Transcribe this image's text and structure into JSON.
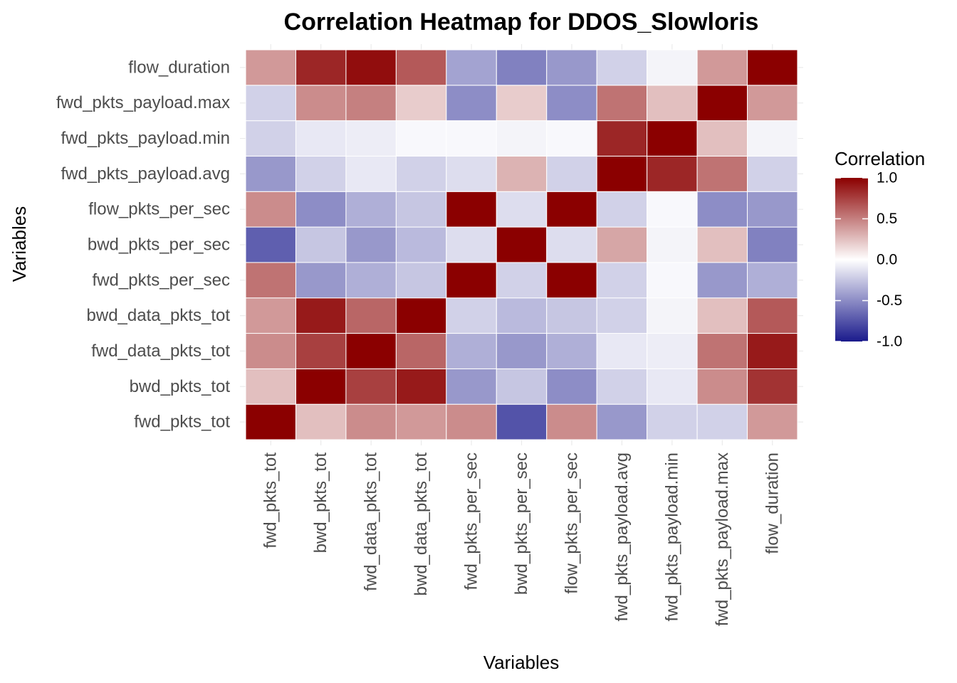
{
  "chart_data": {
    "type": "heatmap",
    "title": "Correlation Heatmap for DDOS_Slowloris",
    "xlabel": "Variables",
    "ylabel": "Variables",
    "x_categories": [
      "fwd_pkts_tot",
      "bwd_pkts_tot",
      "fwd_data_pkts_tot",
      "bwd_data_pkts_tot",
      "fwd_pkts_per_sec",
      "bwd_pkts_per_sec",
      "flow_pkts_per_sec",
      "fwd_pkts_payload.avg",
      "fwd_pkts_payload.min",
      "fwd_pkts_payload.max",
      "flow_duration"
    ],
    "y_categories": [
      "fwd_pkts_tot",
      "bwd_pkts_tot",
      "fwd_data_pkts_tot",
      "bwd_data_pkts_tot",
      "fwd_pkts_per_sec",
      "bwd_pkts_per_sec",
      "flow_pkts_per_sec",
      "fwd_pkts_payload.avg",
      "fwd_pkts_payload.min",
      "fwd_pkts_payload.max",
      "flow_duration"
    ],
    "values": [
      [
        1.0,
        0.25,
        0.45,
        0.4,
        0.45,
        -0.75,
        0.45,
        -0.45,
        -0.2,
        -0.2,
        0.4
      ],
      [
        0.25,
        1.0,
        0.75,
        0.9,
        -0.45,
        -0.25,
        -0.5,
        -0.2,
        -0.1,
        0.45,
        0.8
      ],
      [
        0.45,
        0.75,
        1.0,
        0.6,
        -0.35,
        -0.45,
        -0.35,
        -0.1,
        -0.08,
        0.55,
        0.9
      ],
      [
        0.4,
        0.9,
        0.6,
        1.0,
        -0.2,
        -0.3,
        -0.25,
        -0.2,
        -0.05,
        0.25,
        0.65
      ],
      [
        0.55,
        -0.45,
        -0.35,
        -0.25,
        1.0,
        -0.2,
        1.0,
        -0.2,
        -0.03,
        -0.45,
        -0.35
      ],
      [
        -0.7,
        -0.25,
        -0.45,
        -0.3,
        -0.15,
        1.0,
        -0.15,
        0.35,
        -0.05,
        0.25,
        -0.55
      ],
      [
        0.45,
        -0.5,
        -0.35,
        -0.25,
        1.0,
        -0.15,
        1.0,
        -0.2,
        -0.03,
        -0.5,
        -0.45
      ],
      [
        -0.45,
        -0.2,
        -0.1,
        -0.2,
        -0.15,
        0.3,
        -0.2,
        1.0,
        0.85,
        0.55,
        -0.2
      ],
      [
        -0.2,
        -0.1,
        -0.08,
        -0.03,
        -0.03,
        -0.05,
        -0.03,
        0.85,
        1.0,
        0.25,
        -0.05
      ],
      [
        -0.2,
        0.45,
        0.5,
        0.2,
        -0.5,
        0.2,
        -0.5,
        0.55,
        0.25,
        1.0,
        0.4
      ],
      [
        0.4,
        0.85,
        0.95,
        0.65,
        -0.4,
        -0.55,
        -0.45,
        -0.2,
        -0.05,
        0.4,
        1.0
      ]
    ],
    "zlim": [
      -1.0,
      1.0
    ],
    "color_scale": {
      "low": "#1a1a8c",
      "mid": "#ffffff",
      "high": "#8b0000"
    },
    "legend": {
      "title": "Correlation",
      "ticks": [
        1.0,
        0.5,
        0.0,
        -0.5,
        -1.0
      ],
      "tick_labels": [
        "1.0",
        "0.5",
        "0.0",
        "-0.5",
        "-1.0"
      ],
      "placement": "right"
    },
    "grid": true
  }
}
